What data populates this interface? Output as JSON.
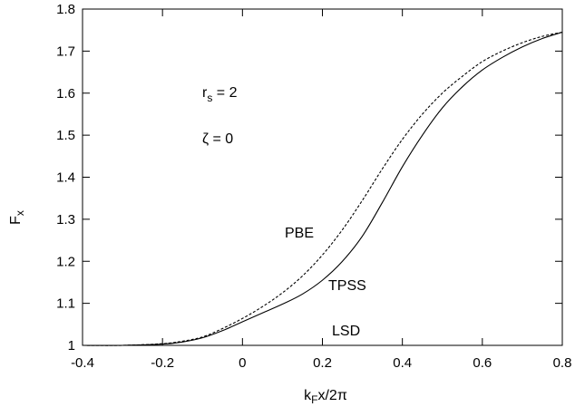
{
  "chart_data": {
    "type": "line",
    "xlabel": {
      "base": "k",
      "sub": "F",
      "rest": "x/2π"
    },
    "ylabel": {
      "base": "F",
      "sub": "x"
    },
    "xlim": [
      -0.4,
      0.8
    ],
    "ylim": [
      1.0,
      1.8
    ],
    "xticks": [
      -0.4,
      -0.2,
      0,
      0.2,
      0.4,
      0.6,
      0.8
    ],
    "xtick_labels": [
      "-0.4",
      "-0.2",
      "0",
      "0.2",
      "0.4",
      "0.6",
      "0.8"
    ],
    "yticks": [
      1.0,
      1.1,
      1.2,
      1.3,
      1.4,
      1.5,
      1.6,
      1.7,
      1.8
    ],
    "ytick_labels": [
      "1",
      "1.1",
      "1.2",
      "1.3",
      "1.4",
      "1.5",
      "1.6",
      "1.7",
      "1.8"
    ],
    "grid": false,
    "series": [
      {
        "name": "TPSS",
        "style": "solid",
        "color": "#000000",
        "x": [
          -0.4,
          -0.3,
          -0.2,
          -0.15,
          -0.1,
          -0.05,
          0.0,
          0.05,
          0.1,
          0.15,
          0.2,
          0.25,
          0.3,
          0.35,
          0.4,
          0.45,
          0.5,
          0.55,
          0.6,
          0.65,
          0.7,
          0.75,
          0.8
        ],
        "y": [
          1.0,
          1.0,
          1.003,
          1.008,
          1.018,
          1.035,
          1.056,
          1.077,
          1.098,
          1.122,
          1.155,
          1.2,
          1.26,
          1.34,
          1.425,
          1.5,
          1.565,
          1.615,
          1.655,
          1.685,
          1.71,
          1.73,
          1.745
        ]
      },
      {
        "name": "PBE",
        "style": "dashed",
        "color": "#000000",
        "x": [
          -0.4,
          -0.3,
          -0.2,
          -0.15,
          -0.1,
          -0.05,
          0.0,
          0.05,
          0.1,
          0.15,
          0.2,
          0.25,
          0.3,
          0.35,
          0.4,
          0.45,
          0.5,
          0.55,
          0.6,
          0.65,
          0.7,
          0.75,
          0.8
        ],
        "y": [
          1.0,
          1.0,
          1.004,
          1.01,
          1.02,
          1.04,
          1.064,
          1.092,
          1.125,
          1.165,
          1.215,
          1.275,
          1.345,
          1.42,
          1.49,
          1.55,
          1.6,
          1.64,
          1.675,
          1.7,
          1.72,
          1.735,
          1.745
        ]
      }
    ],
    "annotations": {
      "rs": {
        "base": "r",
        "sub": "s",
        "rest": " = 2"
      },
      "zeta": "ζ = 0",
      "pbe": "PBE",
      "tpss": "TPSS",
      "lsd": "LSD"
    }
  }
}
